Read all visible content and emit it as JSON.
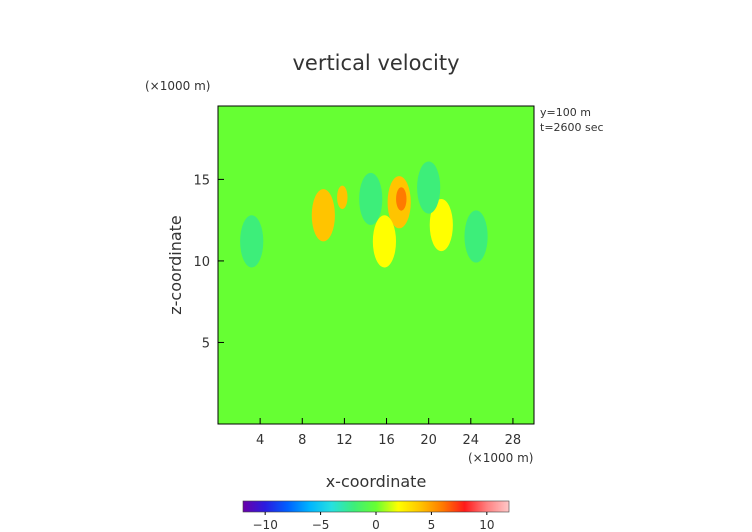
{
  "chart_data": {
    "type": "heatmap",
    "title": "vertical velocity",
    "xlabel": "x-coordinate",
    "ylabel": "z-coordinate",
    "x_unit": "(×1000 m)",
    "z_unit": "(×1000 m)",
    "annotations": [
      "y=100 m",
      "t=2600 sec"
    ],
    "xlim": [
      0,
      30
    ],
    "ylim": [
      0,
      19.5
    ],
    "x_ticks": [
      4,
      8,
      12,
      16,
      20,
      24,
      28
    ],
    "y_ticks": [
      5,
      10,
      15
    ],
    "colorbar": {
      "ticks": [
        -10,
        -5,
        0,
        5,
        10
      ],
      "range": [
        -12,
        12
      ],
      "colors": [
        "#6a00a8",
        "#2a1ce0",
        "#0060ff",
        "#00b4ff",
        "#26e0e0",
        "#3dee7a",
        "#66ff33",
        "#ffff00",
        "#ffc400",
        "#ff7a00",
        "#ff1a1a",
        "#ff8080",
        "#ffc8c8"
      ]
    },
    "background_value": 0.4,
    "features": [
      {
        "kind": "updraft",
        "x": 10.0,
        "z": 12.8,
        "value": 3.0
      },
      {
        "kind": "updraft core",
        "x": 11.8,
        "z": 13.9,
        "value": 4.5
      },
      {
        "kind": "updraft",
        "x": 17.2,
        "z": 13.6,
        "value": 3.2
      },
      {
        "kind": "updraft core",
        "x": 17.4,
        "z": 13.8,
        "value": 5.0
      },
      {
        "kind": "updraft",
        "x": 21.2,
        "z": 12.2,
        "value": 2.5
      },
      {
        "kind": "updraft",
        "x": 15.8,
        "z": 11.2,
        "value": 2.2
      },
      {
        "kind": "downdraft",
        "x": 14.5,
        "z": 13.8,
        "value": -2.5
      },
      {
        "kind": "downdraft",
        "x": 3.2,
        "z": 11.2,
        "value": -1.5
      },
      {
        "kind": "downdraft",
        "x": 24.5,
        "z": 11.5,
        "value": -1.5
      },
      {
        "kind": "downdraft",
        "x": 20.0,
        "z": 14.5,
        "value": -1.0
      }
    ]
  }
}
